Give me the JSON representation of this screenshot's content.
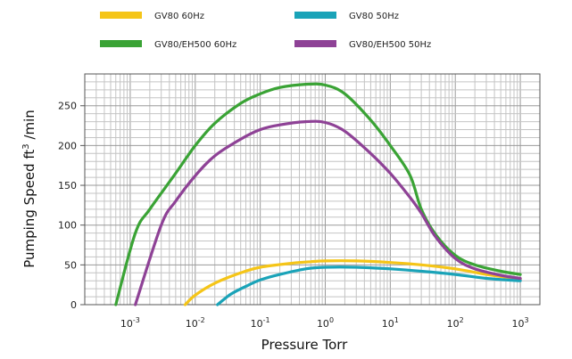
{
  "chart_data": {
    "type": "line",
    "title": "",
    "xlabel": "Pressure Torr",
    "ylabel_main": "Pumping Speed ft",
    "ylabel_sup": "3",
    "ylabel_end": " /min",
    "x_scale": "log",
    "xlim": [
      0.0002,
      2000
    ],
    "ylim": [
      0,
      290
    ],
    "grid": true,
    "legend_position": "top",
    "x_ticks": [
      {
        "value": 0.001,
        "base": "10",
        "exp": "-3"
      },
      {
        "value": 0.01,
        "base": "10",
        "exp": "-2"
      },
      {
        "value": 0.1,
        "base": "10",
        "exp": "-1"
      },
      {
        "value": 1,
        "base": "10",
        "exp": "0"
      },
      {
        "value": 10,
        "base": "10",
        "exp": "1"
      },
      {
        "value": 100,
        "base": "10",
        "exp": "2"
      },
      {
        "value": 1000,
        "base": "10",
        "exp": "3"
      }
    ],
    "y_ticks": [
      {
        "value": 0,
        "label": "0"
      },
      {
        "value": 50,
        "label": "50"
      },
      {
        "value": 100,
        "label": "100"
      },
      {
        "value": 150,
        "label": "150"
      },
      {
        "value": 200,
        "label": "200"
      },
      {
        "value": 250,
        "label": "250"
      }
    ],
    "series": [
      {
        "name": "GV80 60Hz",
        "color": "#f5c518",
        "points": [
          [
            0.007,
            0
          ],
          [
            0.01,
            12
          ],
          [
            0.02,
            27
          ],
          [
            0.05,
            40
          ],
          [
            0.1,
            47
          ],
          [
            0.3,
            52
          ],
          [
            0.6,
            54
          ],
          [
            1,
            55
          ],
          [
            3,
            55
          ],
          [
            10,
            53
          ],
          [
            30,
            50
          ],
          [
            100,
            45
          ],
          [
            300,
            38
          ],
          [
            1000,
            32
          ]
        ]
      },
      {
        "name": "GV80 50Hz",
        "color": "#1aa3b8",
        "points": [
          [
            0.022,
            0
          ],
          [
            0.035,
            13
          ],
          [
            0.06,
            23
          ],
          [
            0.1,
            31
          ],
          [
            0.2,
            38
          ],
          [
            0.5,
            45
          ],
          [
            1,
            47
          ],
          [
            3,
            47
          ],
          [
            10,
            45
          ],
          [
            30,
            42
          ],
          [
            100,
            38
          ],
          [
            300,
            33
          ],
          [
            1000,
            30
          ]
        ]
      },
      {
        "name": "GV80/EH500 60Hz",
        "color": "#3aa335",
        "points": [
          [
            0.0006,
            0
          ],
          [
            0.0012,
            90
          ],
          [
            0.002,
            120
          ],
          [
            0.005,
            165
          ],
          [
            0.01,
            200
          ],
          [
            0.02,
            228
          ],
          [
            0.05,
            253
          ],
          [
            0.1,
            265
          ],
          [
            0.2,
            273
          ],
          [
            0.5,
            277
          ],
          [
            1,
            276
          ],
          [
            2,
            265
          ],
          [
            5,
            232
          ],
          [
            10,
            200
          ],
          [
            20,
            163
          ],
          [
            30,
            120
          ],
          [
            50,
            88
          ],
          [
            100,
            62
          ],
          [
            200,
            50
          ],
          [
            500,
            42
          ],
          [
            1000,
            38
          ]
        ]
      },
      {
        "name": "GV80/EH500 50Hz",
        "color": "#8e4296",
        "points": [
          [
            0.0012,
            0
          ],
          [
            0.003,
            100
          ],
          [
            0.005,
            130
          ],
          [
            0.01,
            162
          ],
          [
            0.02,
            187
          ],
          [
            0.05,
            208
          ],
          [
            0.1,
            220
          ],
          [
            0.2,
            226
          ],
          [
            0.5,
            230
          ],
          [
            1,
            229
          ],
          [
            2,
            218
          ],
          [
            5,
            190
          ],
          [
            10,
            165
          ],
          [
            20,
            135
          ],
          [
            30,
            115
          ],
          [
            50,
            85
          ],
          [
            100,
            58
          ],
          [
            200,
            45
          ],
          [
            500,
            37
          ],
          [
            1000,
            33
          ]
        ]
      }
    ]
  }
}
